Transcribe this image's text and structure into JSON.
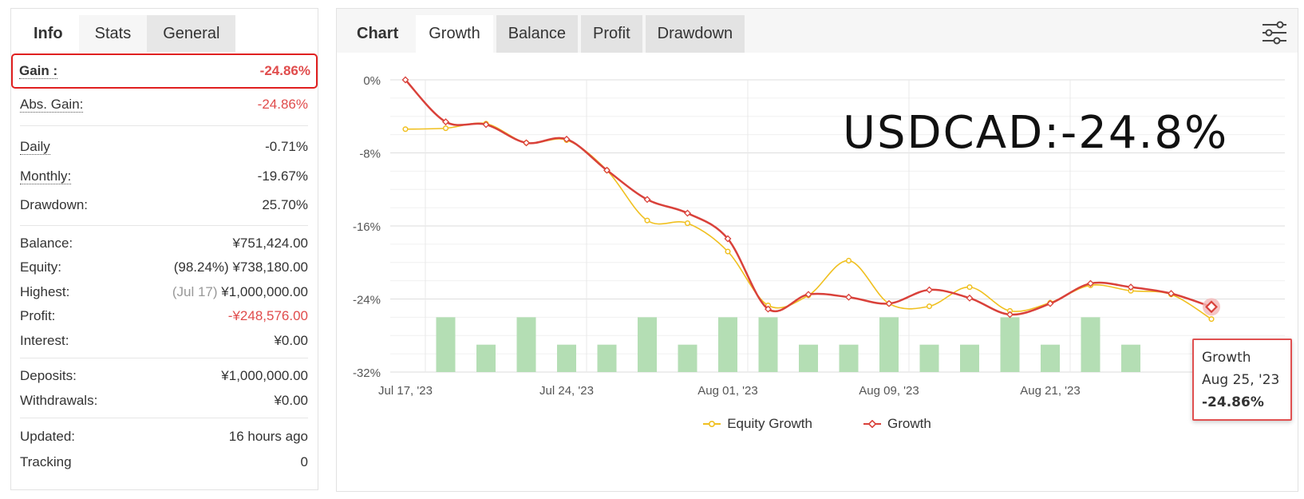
{
  "left_tabs": [
    {
      "label": "Info"
    },
    {
      "label": "Stats"
    },
    {
      "label": "General"
    }
  ],
  "gain": {
    "label": "Gain :",
    "value": "-24.86%"
  },
  "stats_group1": [
    {
      "label": "Abs. Gain:",
      "value": "-24.86%"
    }
  ],
  "stats_group2": [
    {
      "label": "Daily",
      "value": "-0.71%"
    },
    {
      "label": "Monthly:",
      "value": "-19.67%"
    },
    {
      "label": "Drawdown:",
      "value": "25.70%"
    }
  ],
  "stats_group3": [
    {
      "label": "Balance:",
      "value": "¥751,424.00"
    },
    {
      "label": "Equity:",
      "prefix": "(98.24%)",
      "value": "¥738,180.00"
    },
    {
      "label": "Highest:",
      "prefix": "(Jul 17)",
      "value": "¥1,000,000.00"
    },
    {
      "label": "Profit:",
      "value": "-¥248,576.00"
    },
    {
      "label": "Interest:",
      "value": "¥0.00"
    }
  ],
  "stats_group4": [
    {
      "label": "Deposits:",
      "value": "¥1,000,000.00"
    },
    {
      "label": "Withdrawals:",
      "value": "¥0.00"
    }
  ],
  "stats_group5": [
    {
      "label": "Updated:",
      "value": "16 hours ago"
    },
    {
      "label": "Tracking",
      "value": "0"
    }
  ],
  "right_tabs": [
    {
      "label": "Chart"
    },
    {
      "label": "Growth"
    },
    {
      "label": "Balance"
    },
    {
      "label": "Profit"
    },
    {
      "label": "Drawdown"
    }
  ],
  "overlay_text": "USDCAD:-24.8%",
  "tooltip": {
    "series": "Growth",
    "date": "Aug 25, '23",
    "value": "-24.86%"
  },
  "colors": {
    "growth": "#d9413a",
    "equity": "#f0c020",
    "bars": "#b4deb4",
    "negative": "#e04c4c"
  },
  "icons": {
    "settings": "sliders-icon"
  },
  "chart_data": {
    "type": "line",
    "ylim": [
      -32,
      0
    ],
    "yticks": [
      "0%",
      "-8%",
      "-16%",
      "-24%",
      "-32%"
    ],
    "ytick_values": [
      0,
      -8,
      -16,
      -24,
      -32
    ],
    "xtick_labels": [
      "Jul 17, '23",
      "Jul 24, '23",
      "Aug 01, '23",
      "Aug 09, '23",
      "Aug 21, '23"
    ],
    "xtick_index": [
      0,
      4,
      8,
      12,
      16
    ],
    "series": [
      {
        "name": "Equity Growth",
        "values": [
          -5.4,
          -5.3,
          -4.8,
          -6.9,
          -6.6,
          -9.9,
          -15.4,
          -15.7,
          -18.8,
          -24.7,
          -23.6,
          -19.8,
          -24.5,
          -24.8,
          -22.7,
          -25.3,
          -24.4,
          -22.5,
          -23.1,
          -23.5,
          -26.2
        ]
      },
      {
        "name": "Growth",
        "values": [
          0,
          -4.6,
          -4.9,
          -6.9,
          -6.5,
          -9.9,
          -13.1,
          -14.6,
          -17.4,
          -25.1,
          -23.5,
          -23.8,
          -24.5,
          -23.0,
          -23.9,
          -25.7,
          -24.5,
          -22.3,
          -22.7,
          -23.4,
          -24.86
        ]
      }
    ],
    "bars": {
      "values": [
        -26.0,
        -29.0,
        -26.0,
        -29.0,
        -29.0,
        -26.0,
        -29.0,
        -26.0,
        -26.0,
        -29.0,
        -29.0,
        -26.0,
        -29.0,
        -29.0,
        -26.0,
        -29.0,
        -26.0,
        -29.0
      ]
    },
    "legend_position": "bottom",
    "grid": true
  }
}
